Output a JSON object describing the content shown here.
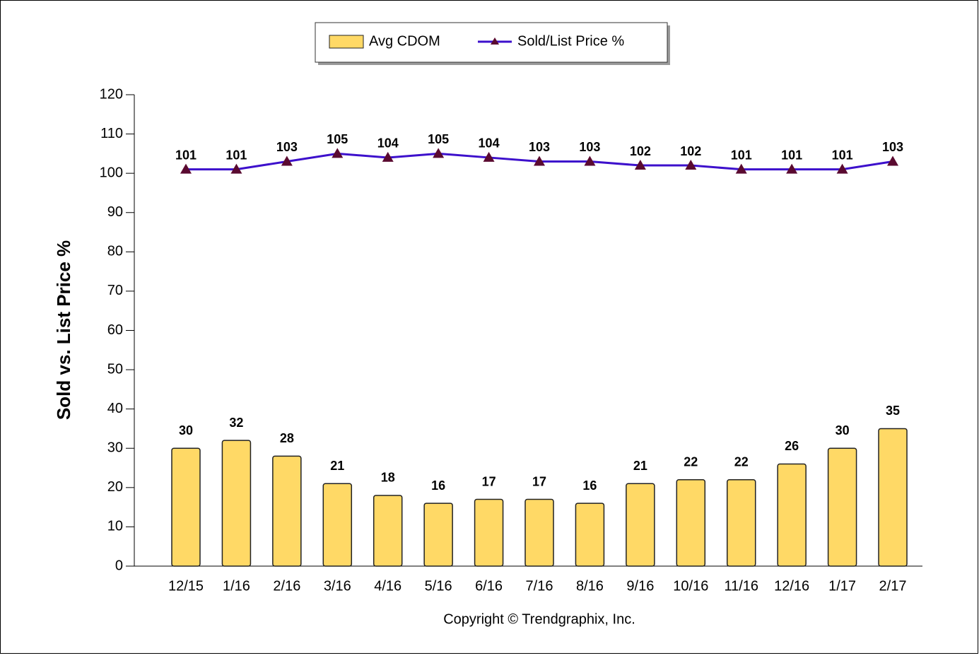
{
  "chart_data": {
    "type": "combo",
    "y_label": "Sold vs. List Price %",
    "footer": "Copyright © Trendgraphix, Inc.",
    "categories": [
      "12/15",
      "1/16",
      "2/16",
      "3/16",
      "4/16",
      "5/16",
      "6/16",
      "7/16",
      "8/16",
      "9/16",
      "10/16",
      "11/16",
      "12/16",
      "1/17",
      "2/17"
    ],
    "series": [
      {
        "name": "Avg CDOM",
        "type": "bar",
        "color": "#ffd966",
        "values": [
          30,
          32,
          28,
          21,
          18,
          16,
          17,
          17,
          16,
          21,
          22,
          22,
          26,
          30,
          35
        ]
      },
      {
        "name": "Sold/List Price %",
        "type": "line",
        "color": "#3d10cc",
        "marker_color": "#5a0a30",
        "values": [
          101,
          101,
          103,
          105,
          104,
          105,
          104,
          103,
          103,
          102,
          102,
          101,
          101,
          101,
          103
        ]
      }
    ],
    "ylim": [
      0,
      120
    ],
    "yticks": [
      0,
      10,
      20,
      30,
      40,
      50,
      60,
      70,
      80,
      90,
      100,
      110,
      120
    ],
    "legend": "top"
  }
}
